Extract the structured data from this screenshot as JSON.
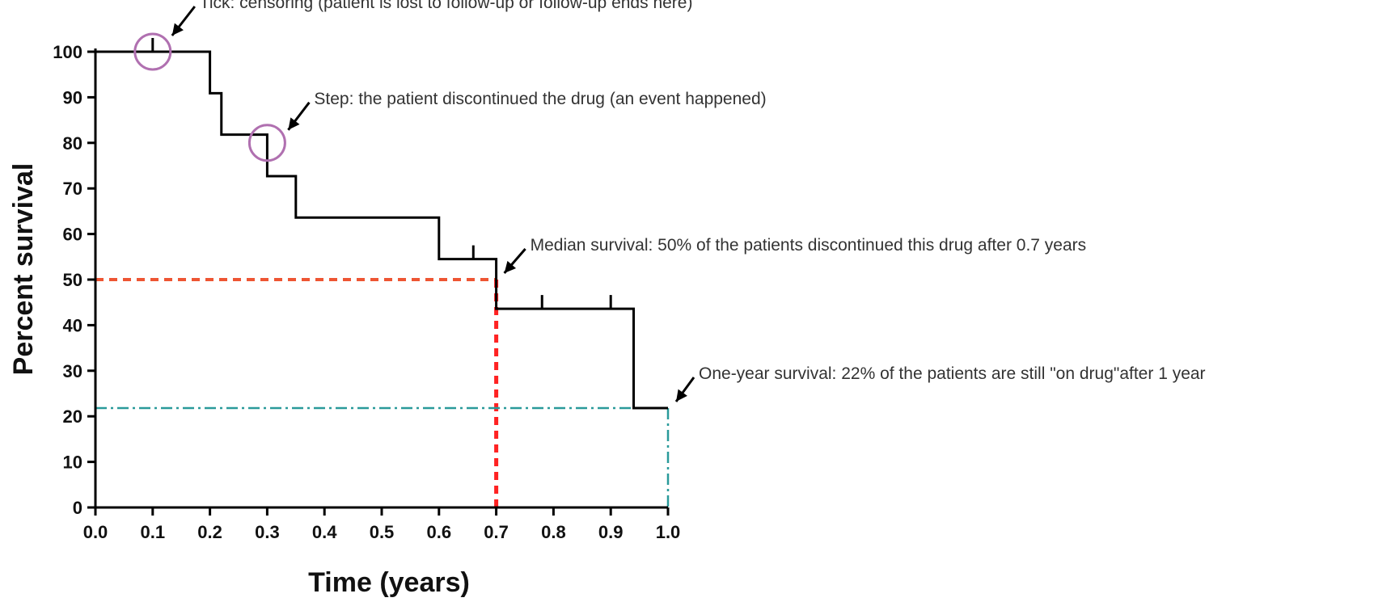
{
  "chart_data": {
    "type": "line",
    "subtype": "kaplan-meier survival curve (step function)",
    "xlabel": "Time (years)",
    "ylabel": "Percent survival",
    "xlim": [
      0,
      1.0
    ],
    "ylim": [
      0,
      100
    ],
    "x_ticks": [
      "0.0",
      "0.1",
      "0.2",
      "0.3",
      "0.4",
      "0.5",
      "0.6",
      "0.7",
      "0.8",
      "0.9",
      "1.0"
    ],
    "y_ticks": [
      "0",
      "10",
      "20",
      "30",
      "40",
      "50",
      "60",
      "70",
      "80",
      "90",
      "100"
    ],
    "grid": false,
    "legend": "none",
    "series": [
      {
        "color": "#000000",
        "steps": [
          {
            "x": 0.0,
            "y": 100
          },
          {
            "x": 0.2,
            "y": 90.9
          },
          {
            "x": 0.22,
            "y": 81.8
          },
          {
            "x": 0.3,
            "y": 72.7
          },
          {
            "x": 0.35,
            "y": 63.6
          },
          {
            "x": 0.6,
            "y": 54.5
          },
          {
            "x": 0.7,
            "y": 43.6
          },
          {
            "x": 0.94,
            "y": 21.8
          }
        ],
        "end_x": 1.0,
        "censored": [
          {
            "x": 0.1,
            "y": 100
          },
          {
            "x": 0.66,
            "y": 54.5
          },
          {
            "x": 0.78,
            "y": 43.6
          },
          {
            "x": 0.9,
            "y": 43.6
          }
        ]
      }
    ],
    "reference_lines": [
      {
        "kind": "median",
        "x": 0.7,
        "y": 50,
        "color": "#ee5533"
      },
      {
        "kind": "one-year",
        "x": 1.0,
        "y": 21.8,
        "color": "#2a9a9a"
      }
    ],
    "annotations": [
      {
        "text": "Tick: censoring (patient is lost to follow-up or follow-up ends here)",
        "target_x": 0.1,
        "target_y": 100
      },
      {
        "text": "Step: the patient discontinued the drug (an event happened)",
        "target_x": 0.3,
        "target_y": 80
      },
      {
        "text": "Median survival: 50% of the patients discontinued this drug after 0.7 years",
        "target_x": 0.7,
        "target_y": 50
      },
      {
        "text": "One-year survival: 22% of the patients are still \"on drug\"after 1 year",
        "target_x": 1.0,
        "target_y": 21.8
      }
    ],
    "highlight_color": "#b070b0"
  }
}
